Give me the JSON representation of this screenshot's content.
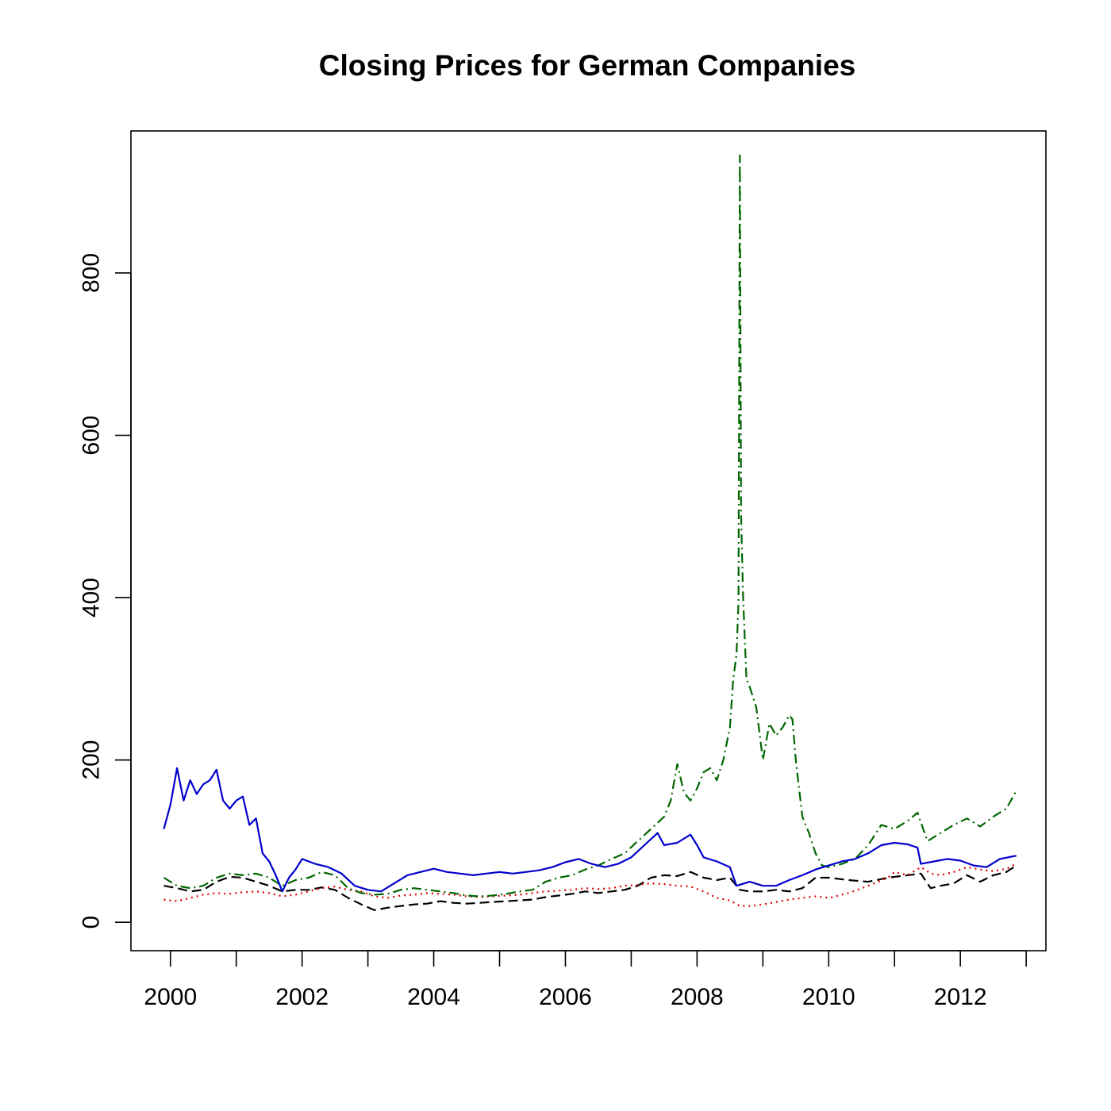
{
  "chart_data": {
    "type": "line",
    "title": "Closing Prices for German Companies",
    "xlabel": "",
    "ylabel": "",
    "xlim": [
      1999.4,
      2013.3
    ],
    "ylim": [
      -35,
      975
    ],
    "x_ticks": [
      2000,
      2001,
      2002,
      2003,
      2004,
      2005,
      2006,
      2007,
      2008,
      2009,
      2010,
      2011,
      2012,
      2013
    ],
    "x_tick_labels": [
      {
        "value": 2000,
        "label": "2000"
      },
      {
        "value": 2002,
        "label": "2002"
      },
      {
        "value": 2004,
        "label": "2004"
      },
      {
        "value": 2006,
        "label": "2006"
      },
      {
        "value": 2008,
        "label": "2008"
      },
      {
        "value": 2010,
        "label": "2010"
      },
      {
        "value": 2012,
        "label": "2012"
      }
    ],
    "y_ticks": [
      {
        "value": 0,
        "label": "0"
      },
      {
        "value": 200,
        "label": "200"
      },
      {
        "value": 400,
        "label": "400"
      },
      {
        "value": 600,
        "label": "600"
      },
      {
        "value": 800,
        "label": "800"
      }
    ],
    "grid": false,
    "legend": "none",
    "series": [
      {
        "color": "#000000",
        "line_style": "dashed",
        "points": [
          [
            1999.9,
            45
          ],
          [
            2000.1,
            42
          ],
          [
            2000.3,
            38
          ],
          [
            2000.5,
            40
          ],
          [
            2000.7,
            50
          ],
          [
            2000.9,
            56
          ],
          [
            2001.1,
            55
          ],
          [
            2001.3,
            50
          ],
          [
            2001.5,
            45
          ],
          [
            2001.7,
            38
          ],
          [
            2001.9,
            40
          ],
          [
            2002.1,
            40
          ],
          [
            2002.3,
            43
          ],
          [
            2002.5,
            40
          ],
          [
            2002.7,
            30
          ],
          [
            2002.9,
            22
          ],
          [
            2003.1,
            15
          ],
          [
            2003.3,
            18
          ],
          [
            2003.5,
            20
          ],
          [
            2003.7,
            22
          ],
          [
            2003.9,
            23
          ],
          [
            2004.1,
            26
          ],
          [
            2004.3,
            24
          ],
          [
            2004.5,
            23
          ],
          [
            2004.7,
            24
          ],
          [
            2004.9,
            25
          ],
          [
            2005.1,
            26
          ],
          [
            2005.3,
            27
          ],
          [
            2005.5,
            28
          ],
          [
            2005.7,
            31
          ],
          [
            2005.9,
            33
          ],
          [
            2006.1,
            35
          ],
          [
            2006.3,
            38
          ],
          [
            2006.5,
            36
          ],
          [
            2006.7,
            38
          ],
          [
            2006.9,
            40
          ],
          [
            2007.1,
            45
          ],
          [
            2007.3,
            55
          ],
          [
            2007.5,
            58
          ],
          [
            2007.7,
            57
          ],
          [
            2007.9,
            62
          ],
          [
            2008.1,
            55
          ],
          [
            2008.3,
            52
          ],
          [
            2008.5,
            55
          ],
          [
            2008.65,
            40
          ],
          [
            2008.8,
            38
          ],
          [
            2009.0,
            38
          ],
          [
            2009.2,
            40
          ],
          [
            2009.4,
            38
          ],
          [
            2009.6,
            42
          ],
          [
            2009.8,
            55
          ],
          [
            2010.0,
            55
          ],
          [
            2010.3,
            52
          ],
          [
            2010.6,
            50
          ],
          [
            2010.9,
            55
          ],
          [
            2011.2,
            58
          ],
          [
            2011.4,
            60
          ],
          [
            2011.55,
            42
          ],
          [
            2011.7,
            45
          ],
          [
            2011.9,
            48
          ],
          [
            2012.1,
            58
          ],
          [
            2012.3,
            50
          ],
          [
            2012.5,
            58
          ],
          [
            2012.7,
            62
          ],
          [
            2012.85,
            70
          ]
        ]
      },
      {
        "color": "#dd0000",
        "line_style": "dotted",
        "points": [
          [
            1999.9,
            28
          ],
          [
            2000.1,
            26
          ],
          [
            2000.3,
            30
          ],
          [
            2000.5,
            34
          ],
          [
            2000.7,
            36
          ],
          [
            2000.9,
            35
          ],
          [
            2001.1,
            37
          ],
          [
            2001.3,
            38
          ],
          [
            2001.5,
            36
          ],
          [
            2001.7,
            32
          ],
          [
            2001.9,
            34
          ],
          [
            2002.1,
            38
          ],
          [
            2002.3,
            42
          ],
          [
            2002.5,
            44
          ],
          [
            2002.7,
            40
          ],
          [
            2002.9,
            38
          ],
          [
            2003.1,
            32
          ],
          [
            2003.3,
            30
          ],
          [
            2003.5,
            33
          ],
          [
            2003.7,
            34
          ],
          [
            2003.9,
            36
          ],
          [
            2004.1,
            35
          ],
          [
            2004.3,
            34
          ],
          [
            2004.5,
            32
          ],
          [
            2004.7,
            31
          ],
          [
            2004.9,
            32
          ],
          [
            2005.1,
            33
          ],
          [
            2005.3,
            34
          ],
          [
            2005.5,
            36
          ],
          [
            2005.7,
            38
          ],
          [
            2005.9,
            39
          ],
          [
            2006.1,
            40
          ],
          [
            2006.3,
            42
          ],
          [
            2006.5,
            41
          ],
          [
            2006.7,
            42
          ],
          [
            2006.9,
            45
          ],
          [
            2007.1,
            46
          ],
          [
            2007.3,
            48
          ],
          [
            2007.5,
            47
          ],
          [
            2007.7,
            45
          ],
          [
            2007.9,
            44
          ],
          [
            2008.1,
            38
          ],
          [
            2008.3,
            30
          ],
          [
            2008.5,
            27
          ],
          [
            2008.65,
            20
          ],
          [
            2008.8,
            20
          ],
          [
            2009.0,
            22
          ],
          [
            2009.2,
            25
          ],
          [
            2009.4,
            28
          ],
          [
            2009.6,
            30
          ],
          [
            2009.8,
            32
          ],
          [
            2010.0,
            30
          ],
          [
            2010.3,
            36
          ],
          [
            2010.6,
            45
          ],
          [
            2010.9,
            55
          ],
          [
            2011.0,
            62
          ],
          [
            2011.2,
            58
          ],
          [
            2011.4,
            68
          ],
          [
            2011.55,
            60
          ],
          [
            2011.7,
            58
          ],
          [
            2011.9,
            62
          ],
          [
            2012.1,
            68
          ],
          [
            2012.3,
            65
          ],
          [
            2012.5,
            63
          ],
          [
            2012.7,
            66
          ],
          [
            2012.85,
            72
          ]
        ]
      },
      {
        "color": "#006600",
        "line_style": "dashdot",
        "points": [
          [
            1999.9,
            55
          ],
          [
            2000.1,
            45
          ],
          [
            2000.3,
            42
          ],
          [
            2000.5,
            45
          ],
          [
            2000.7,
            55
          ],
          [
            2000.9,
            60
          ],
          [
            2001.1,
            58
          ],
          [
            2001.3,
            60
          ],
          [
            2001.5,
            55
          ],
          [
            2001.7,
            45
          ],
          [
            2001.9,
            52
          ],
          [
            2002.1,
            55
          ],
          [
            2002.3,
            62
          ],
          [
            2002.5,
            58
          ],
          [
            2002.7,
            42
          ],
          [
            2002.9,
            36
          ],
          [
            2003.1,
            34
          ],
          [
            2003.3,
            35
          ],
          [
            2003.5,
            40
          ],
          [
            2003.7,
            42
          ],
          [
            2003.9,
            40
          ],
          [
            2004.1,
            38
          ],
          [
            2004.3,
            36
          ],
          [
            2004.5,
            33
          ],
          [
            2004.7,
            32
          ],
          [
            2004.9,
            33
          ],
          [
            2005.1,
            35
          ],
          [
            2005.3,
            38
          ],
          [
            2005.5,
            40
          ],
          [
            2005.7,
            50
          ],
          [
            2005.9,
            55
          ],
          [
            2006.1,
            58
          ],
          [
            2006.3,
            65
          ],
          [
            2006.5,
            70
          ],
          [
            2006.7,
            78
          ],
          [
            2006.9,
            85
          ],
          [
            2007.1,
            100
          ],
          [
            2007.3,
            115
          ],
          [
            2007.5,
            130
          ],
          [
            2007.6,
            150
          ],
          [
            2007.7,
            195
          ],
          [
            2007.8,
            160
          ],
          [
            2007.9,
            150
          ],
          [
            2008.0,
            165
          ],
          [
            2008.1,
            185
          ],
          [
            2008.2,
            190
          ],
          [
            2008.3,
            175
          ],
          [
            2008.4,
            200
          ],
          [
            2008.5,
            240
          ],
          [
            2008.55,
            300
          ],
          [
            2008.6,
            330
          ],
          [
            2008.63,
            395
          ],
          [
            2008.65,
            945
          ],
          [
            2008.67,
            500
          ],
          [
            2008.7,
            400
          ],
          [
            2008.75,
            300
          ],
          [
            2008.8,
            290
          ],
          [
            2008.9,
            265
          ],
          [
            2009.0,
            200
          ],
          [
            2009.1,
            245
          ],
          [
            2009.2,
            230
          ],
          [
            2009.3,
            240
          ],
          [
            2009.4,
            255
          ],
          [
            2009.45,
            250
          ],
          [
            2009.5,
            200
          ],
          [
            2009.6,
            130
          ],
          [
            2009.7,
            110
          ],
          [
            2009.8,
            85
          ],
          [
            2009.9,
            70
          ],
          [
            2010.0,
            68
          ],
          [
            2010.2,
            72
          ],
          [
            2010.4,
            78
          ],
          [
            2010.6,
            95
          ],
          [
            2010.8,
            120
          ],
          [
            2011.0,
            115
          ],
          [
            2011.2,
            125
          ],
          [
            2011.35,
            135
          ],
          [
            2011.5,
            100
          ],
          [
            2011.7,
            110
          ],
          [
            2011.9,
            120
          ],
          [
            2012.1,
            128
          ],
          [
            2012.3,
            118
          ],
          [
            2012.5,
            130
          ],
          [
            2012.7,
            140
          ],
          [
            2012.85,
            162
          ]
        ]
      },
      {
        "color": "#0000cc",
        "line_style": "solid",
        "points": [
          [
            1999.9,
            115
          ],
          [
            2000.0,
            145
          ],
          [
            2000.1,
            190
          ],
          [
            2000.2,
            150
          ],
          [
            2000.3,
            175
          ],
          [
            2000.4,
            158
          ],
          [
            2000.5,
            170
          ],
          [
            2000.6,
            175
          ],
          [
            2000.7,
            188
          ],
          [
            2000.8,
            150
          ],
          [
            2000.9,
            140
          ],
          [
            2001.0,
            150
          ],
          [
            2001.1,
            155
          ],
          [
            2001.2,
            120
          ],
          [
            2001.3,
            128
          ],
          [
            2001.4,
            85
          ],
          [
            2001.5,
            75
          ],
          [
            2001.6,
            58
          ],
          [
            2001.7,
            38
          ],
          [
            2001.8,
            55
          ],
          [
            2001.9,
            65
          ],
          [
            2002.0,
            78
          ],
          [
            2002.2,
            72
          ],
          [
            2002.4,
            68
          ],
          [
            2002.6,
            60
          ],
          [
            2002.8,
            45
          ],
          [
            2003.0,
            40
          ],
          [
            2003.2,
            38
          ],
          [
            2003.4,
            48
          ],
          [
            2003.6,
            58
          ],
          [
            2003.8,
            62
          ],
          [
            2004.0,
            66
          ],
          [
            2004.2,
            62
          ],
          [
            2004.4,
            60
          ],
          [
            2004.6,
            58
          ],
          [
            2004.8,
            60
          ],
          [
            2005.0,
            62
          ],
          [
            2005.2,
            60
          ],
          [
            2005.4,
            62
          ],
          [
            2005.6,
            64
          ],
          [
            2005.8,
            68
          ],
          [
            2006.0,
            74
          ],
          [
            2006.2,
            78
          ],
          [
            2006.4,
            72
          ],
          [
            2006.6,
            68
          ],
          [
            2006.8,
            72
          ],
          [
            2007.0,
            80
          ],
          [
            2007.2,
            95
          ],
          [
            2007.4,
            110
          ],
          [
            2007.5,
            95
          ],
          [
            2007.7,
            98
          ],
          [
            2007.9,
            108
          ],
          [
            2008.0,
            95
          ],
          [
            2008.1,
            80
          ],
          [
            2008.3,
            75
          ],
          [
            2008.5,
            68
          ],
          [
            2008.6,
            45
          ],
          [
            2008.8,
            50
          ],
          [
            2009.0,
            45
          ],
          [
            2009.2,
            45
          ],
          [
            2009.4,
            52
          ],
          [
            2009.6,
            58
          ],
          [
            2009.8,
            65
          ],
          [
            2010.0,
            70
          ],
          [
            2010.2,
            75
          ],
          [
            2010.4,
            78
          ],
          [
            2010.6,
            85
          ],
          [
            2010.8,
            95
          ],
          [
            2011.0,
            98
          ],
          [
            2011.2,
            96
          ],
          [
            2011.35,
            92
          ],
          [
            2011.4,
            72
          ],
          [
            2011.6,
            75
          ],
          [
            2011.8,
            78
          ],
          [
            2012.0,
            76
          ],
          [
            2012.2,
            70
          ],
          [
            2012.4,
            68
          ],
          [
            2012.6,
            78
          ],
          [
            2012.85,
            82
          ]
        ]
      }
    ]
  }
}
